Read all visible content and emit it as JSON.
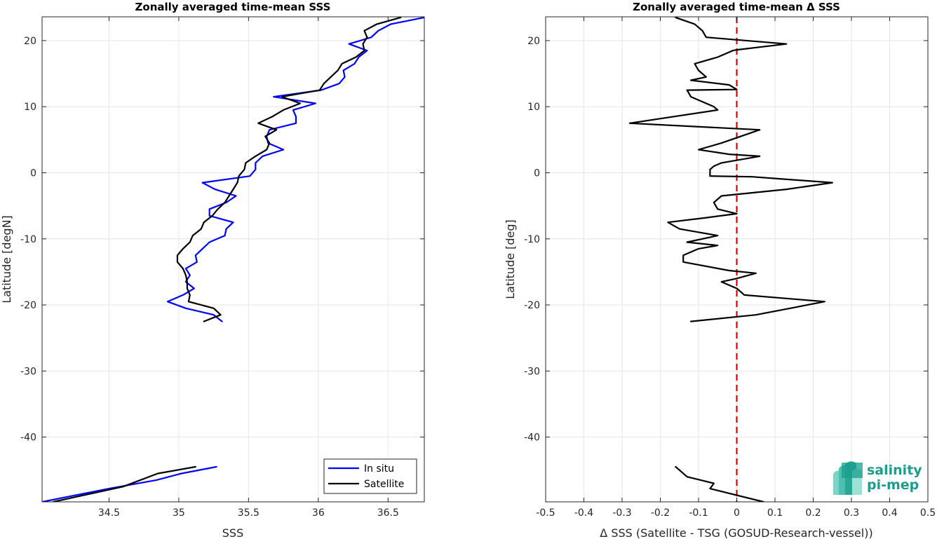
{
  "chart_data": [
    {
      "type": "line",
      "title": "Zonally averaged time-mean SSS",
      "xlabel": "SSS",
      "ylabel": "Latitude [degN]",
      "xlim": [
        34.02,
        36.76
      ],
      "ylim": [
        -49.8,
        23.6
      ],
      "xticks": [
        34.5,
        35,
        35.5,
        36,
        36.5
      ],
      "xtick_labels": [
        "34.5",
        "35",
        "35.5",
        "36",
        "36.5"
      ],
      "yticks": [
        -40,
        -30,
        -20,
        -10,
        0,
        10,
        20
      ],
      "ytick_labels": [
        "-40",
        "-30",
        "-20",
        "-10",
        "0",
        "10",
        "20"
      ],
      "grid": true,
      "legend_position": "bottom-right",
      "series": [
        {
          "name": "In situ",
          "color": "#0000ff",
          "segments": [
            [
              [
                35.31,
                -22.5
              ],
              [
                35.25,
                -21.5
              ],
              [
                35.05,
                -20.5
              ],
              [
                34.92,
                -19.5
              ],
              [
                35.03,
                -18.5
              ],
              [
                35.11,
                -17.5
              ],
              [
                35.05,
                -16.5
              ],
              [
                35.08,
                -15.5
              ],
              [
                35.05,
                -14.5
              ],
              [
                35.13,
                -13.5
              ],
              [
                35.12,
                -12.5
              ],
              [
                35.17,
                -11.5
              ],
              [
                35.22,
                -10.5
              ],
              [
                35.33,
                -9.5
              ],
              [
                35.34,
                -8.5
              ],
              [
                35.39,
                -7.5
              ],
              [
                35.22,
                -6.5
              ],
              [
                35.22,
                -5.5
              ],
              [
                35.34,
                -4.5
              ],
              [
                35.41,
                -3.5
              ],
              [
                35.26,
                -2.5
              ],
              [
                35.17,
                -1.5
              ],
              [
                35.51,
                -0.5
              ],
              [
                35.55,
                0.5
              ],
              [
                35.55,
                1.5
              ],
              [
                35.6,
                2.5
              ],
              [
                35.75,
                3.5
              ],
              [
                35.64,
                4.5
              ],
              [
                35.63,
                5.5
              ],
              [
                35.65,
                6.5
              ],
              [
                35.84,
                7.5
              ],
              [
                35.84,
                8.5
              ],
              [
                35.82,
                9.5
              ],
              [
                35.98,
                10.5
              ],
              [
                35.68,
                11.5
              ],
              [
                36.02,
                12.5
              ],
              [
                36.15,
                13.5
              ],
              [
                36.19,
                14.5
              ],
              [
                36.18,
                15.5
              ],
              [
                36.26,
                16.5
              ],
              [
                36.29,
                17.5
              ],
              [
                36.35,
                18.5
              ],
              [
                36.22,
                19.5
              ],
              [
                36.38,
                20.5
              ],
              [
                36.43,
                21.5
              ],
              [
                36.52,
                22.5
              ],
              [
                36.76,
                23.5
              ]
            ],
            [
              [
                34.02,
                -49.8
              ],
              [
                34.5,
                -47.8
              ],
              [
                34.84,
                -46.5
              ],
              [
                35.02,
                -45.5
              ],
              [
                35.27,
                -44.5
              ]
            ]
          ]
        },
        {
          "name": "Satellite",
          "color": "#000000",
          "segments": [
            [
              [
                35.18,
                -22.5
              ],
              [
                35.3,
                -21.5
              ],
              [
                35.25,
                -20.5
              ],
              [
                35.07,
                -19.5
              ],
              [
                35.08,
                -18.5
              ],
              [
                35.06,
                -17.5
              ],
              [
                35.06,
                -16.5
              ],
              [
                35.05,
                -15.5
              ],
              [
                35.03,
                -14.5
              ],
              [
                34.99,
                -13.5
              ],
              [
                34.99,
                -12.5
              ],
              [
                35.03,
                -11.5
              ],
              [
                35.08,
                -10.5
              ],
              [
                35.1,
                -9.5
              ],
              [
                35.16,
                -8.5
              ],
              [
                35.18,
                -7.5
              ],
              [
                35.24,
                -6.5
              ],
              [
                35.28,
                -5.5
              ],
              [
                35.33,
                -4.5
              ],
              [
                35.36,
                -3.5
              ],
              [
                35.39,
                -2.5
              ],
              [
                35.42,
                -1.5
              ],
              [
                35.43,
                -0.5
              ],
              [
                35.47,
                0.5
              ],
              [
                35.48,
                1.5
              ],
              [
                35.55,
                2.5
              ],
              [
                35.63,
                3.5
              ],
              [
                35.65,
                4.5
              ],
              [
                35.62,
                5.5
              ],
              [
                35.7,
                6.5
              ],
              [
                35.57,
                7.5
              ],
              [
                35.67,
                8.5
              ],
              [
                35.75,
                9.5
              ],
              [
                35.87,
                10.5
              ],
              [
                35.74,
                11.5
              ],
              [
                36.01,
                12.5
              ],
              [
                36.04,
                13.5
              ],
              [
                36.09,
                14.5
              ],
              [
                36.14,
                15.5
              ],
              [
                36.17,
                16.5
              ],
              [
                36.27,
                17.5
              ],
              [
                36.33,
                18.5
              ],
              [
                36.32,
                19.5
              ],
              [
                36.35,
                20.5
              ],
              [
                36.33,
                21.5
              ],
              [
                36.42,
                22.5
              ],
              [
                36.59,
                23.5
              ]
            ],
            [
              [
                34.1,
                -49.8
              ],
              [
                34.6,
                -47.5
              ],
              [
                34.85,
                -45.5
              ],
              [
                35.12,
                -44.5
              ]
            ]
          ]
        }
      ]
    },
    {
      "type": "line",
      "title": "Zonally averaged time-mean Δ SSS",
      "xlabel": "Δ SSS (Satellite - TSG (GOSUD-Research-vessel))",
      "ylabel": "Latitude [deg]",
      "xlim": [
        -0.5,
        0.5
      ],
      "ylim": [
        -49.8,
        23.6
      ],
      "xticks": [
        -0.5,
        -0.4,
        -0.3,
        -0.2,
        -0.1,
        0,
        0.1,
        0.2,
        0.3,
        0.4,
        0.5
      ],
      "xtick_labels": [
        "-0.5",
        "-0.4",
        "-0.3",
        "-0.2",
        "-0.1",
        "0",
        "0.1",
        "0.2",
        "0.3",
        "0.4",
        "0.5"
      ],
      "yticks": [
        -40,
        -30,
        -20,
        -10,
        0,
        10,
        20
      ],
      "ytick_labels": [
        "-40",
        "-30",
        "-20",
        "-10",
        "0",
        "10",
        "20"
      ],
      "grid": true,
      "reference_line": {
        "x": 0,
        "color": "#e00000",
        "style": "dashed"
      },
      "series": [
        {
          "color": "#000000",
          "segments": [
            [
              [
                -0.12,
                -22.5
              ],
              [
                0.05,
                -21.5
              ],
              [
                0.14,
                -20.5
              ],
              [
                0.23,
                -19.5
              ],
              [
                0.02,
                -18.5
              ],
              [
                0,
                -17.5
              ],
              [
                -0.04,
                -16.5
              ],
              [
                0,
                -16.0
              ],
              [
                0.05,
                -15.2
              ],
              [
                -0.02,
                -14.8
              ],
              [
                -0.14,
                -13.5
              ],
              [
                -0.14,
                -12.5
              ],
              [
                -0.1,
                -11.5
              ],
              [
                -0.05,
                -11.0
              ],
              [
                -0.13,
                -10.5
              ],
              [
                -0.05,
                -9.5
              ],
              [
                -0.15,
                -8.5
              ],
              [
                -0.18,
                -7.5
              ],
              [
                -0.08,
                -6.8
              ],
              [
                0,
                -6.2
              ],
              [
                -0.05,
                -5.5
              ],
              [
                -0.06,
                -4.5
              ],
              [
                -0.04,
                -3.5
              ],
              [
                0.13,
                -2.5
              ],
              [
                0.25,
                -1.5
              ],
              [
                0.04,
                -0.6
              ],
              [
                -0.07,
                -0.5
              ],
              [
                -0.07,
                0.5
              ],
              [
                -0.06,
                1.0
              ],
              [
                -0.04,
                1.5
              ],
              [
                0.06,
                2.5
              ],
              [
                -0.02,
                2.8
              ],
              [
                -0.1,
                3.5
              ],
              [
                -0.04,
                4.5
              ],
              [
                0.06,
                6.5
              ],
              [
                -0.28,
                7.5
              ],
              [
                -0.05,
                9.5
              ],
              [
                -0.06,
                10.0
              ],
              [
                -0.12,
                11.5
              ],
              [
                -0.13,
                12.5
              ],
              [
                0,
                12.6
              ],
              [
                -0.02,
                13.3
              ],
              [
                -0.12,
                14.0
              ],
              [
                -0.08,
                14.5
              ],
              [
                -0.1,
                15.5
              ],
              [
                -0.11,
                16.5
              ],
              [
                -0.05,
                17.5
              ],
              [
                -0.01,
                18.5
              ],
              [
                0,
                18.6
              ],
              [
                0.13,
                19.5
              ],
              [
                -0.08,
                20.5
              ],
              [
                -0.09,
                21.5
              ],
              [
                -0.11,
                22.5
              ],
              [
                -0.16,
                23.5
              ]
            ],
            [
              [
                -0.16,
                -44.5
              ],
              [
                -0.15,
                -45.0
              ],
              [
                -0.13,
                -46.0
              ],
              [
                -0.06,
                -47.0
              ],
              [
                -0.07,
                -47.8
              ],
              [
                0.07,
                -49.8
              ]
            ]
          ]
        }
      ]
    }
  ],
  "legend": {
    "items": [
      {
        "label": "In situ",
        "color": "#0000ff"
      },
      {
        "label": "Satellite",
        "color": "#000000"
      }
    ]
  },
  "logo": {
    "line1": "salinity",
    "line2": "pi-mep",
    "color": "#1a9e8e"
  }
}
